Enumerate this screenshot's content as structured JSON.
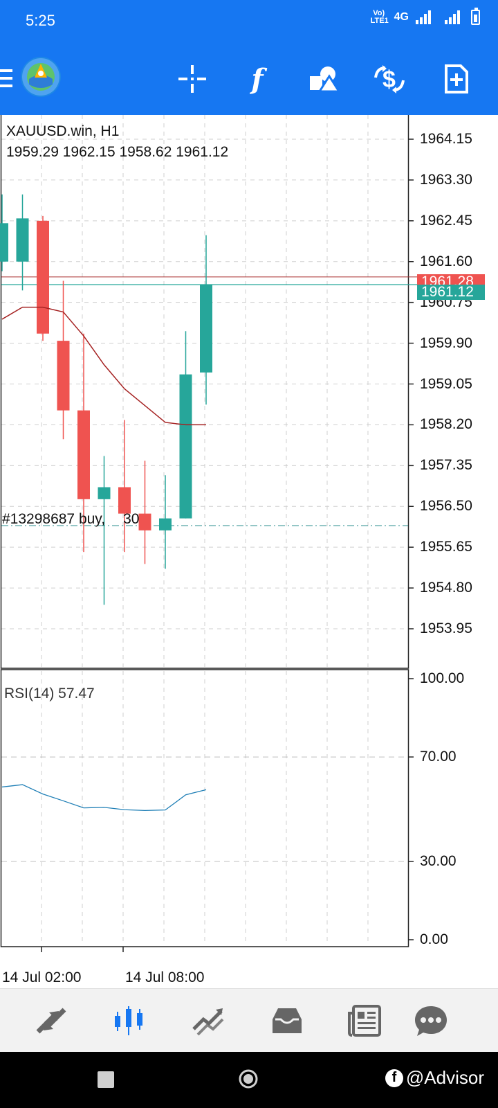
{
  "status_bar": {
    "time": "5:25",
    "network_label": "4G",
    "volte_label": "Vo) LTE1",
    "icons": [
      "volte-icon",
      "signal-icon",
      "signal-icon",
      "battery-icon"
    ]
  },
  "toolbar": {
    "icons": [
      "app-logo-icon",
      "crosshair-icon",
      "indicators-icon",
      "objects-icon",
      "trade-icon",
      "new-order-icon"
    ],
    "color": "#1677f2"
  },
  "chart": {
    "symbol": "XAUUSD.win, H1",
    "ohlc": "1959.29 1962.15 1958.62 1961.12",
    "bid_tag": "1961.12",
    "ask_tag": "1961.28",
    "bid_color": "#26a69a",
    "ask_color": "#ef5350",
    "order_label": "#13298687 buy,",
    "order_label_suffix": "30",
    "rsi_label": "RSI(14) 57.47"
  },
  "chart_data": {
    "type": "candlestick",
    "price_axis_ticks": [
      "1964.15",
      "1963.30",
      "1962.45",
      "1961.60",
      "1960.75",
      "1959.90",
      "1959.05",
      "1958.20",
      "1957.35",
      "1956.50",
      "1955.65",
      "1954.80",
      "1953.95"
    ],
    "price_axis_values": [
      1964.15,
      1963.3,
      1962.45,
      1961.6,
      1960.75,
      1959.9,
      1959.05,
      1958.2,
      1957.35,
      1956.5,
      1955.65,
      1954.8,
      1953.95
    ],
    "price_range": [
      1953.3,
      1964.7
    ],
    "candles": [
      {
        "o": 1961.6,
        "h": 1963.0,
        "l": 1961.4,
        "c": 1962.4
      },
      {
        "o": 1961.6,
        "h": 1963.0,
        "l": 1961.0,
        "c": 1962.5
      },
      {
        "o": 1962.45,
        "h": 1962.55,
        "l": 1959.95,
        "c": 1960.1
      },
      {
        "o": 1959.95,
        "h": 1961.2,
        "l": 1957.9,
        "c": 1958.5
      },
      {
        "o": 1958.5,
        "h": 1960.1,
        "l": 1955.55,
        "c": 1956.65
      },
      {
        "o": 1956.65,
        "h": 1957.55,
        "l": 1954.45,
        "c": 1956.9
      },
      {
        "o": 1956.9,
        "h": 1958.3,
        "l": 1955.55,
        "c": 1956.35
      },
      {
        "o": 1956.35,
        "h": 1957.45,
        "l": 1955.3,
        "c": 1956.0
      },
      {
        "o": 1956.0,
        "h": 1957.15,
        "l": 1955.2,
        "c": 1956.25
      },
      {
        "o": 1956.25,
        "h": 1960.15,
        "l": 1956.25,
        "c": 1959.25
      },
      {
        "o": 1959.29,
        "h": 1962.15,
        "l": 1958.62,
        "c": 1961.12
      }
    ],
    "moving_average": [
      1960.4,
      1960.65,
      1960.65,
      1960.55,
      1960.05,
      1959.45,
      1958.95,
      1958.6,
      1958.25,
      1958.2,
      1958.2
    ],
    "ask_line": 1961.28,
    "bid_line": 1961.12,
    "order_line": 1956.1,
    "rsi_ticks": [
      "100.00",
      "70.00",
      "30.00",
      "0.00"
    ],
    "rsi_values_axis": [
      100,
      70,
      30,
      0
    ],
    "rsi_values": [
      58.5,
      59.4,
      55.8,
      53.2,
      50.5,
      50.7,
      49.8,
      49.5,
      49.7,
      55.5,
      57.47
    ],
    "x_labels": [
      "14 Jul 02:00",
      "14 Jul 08:00"
    ]
  },
  "bottom_nav": {
    "items": [
      "quotes-icon",
      "chart-icon",
      "trade-icon",
      "history-icon",
      "news-icon",
      "messages-icon"
    ],
    "active_color": "#1677f2"
  },
  "watermark": {
    "badge": "f",
    "text": "@Advisor"
  }
}
